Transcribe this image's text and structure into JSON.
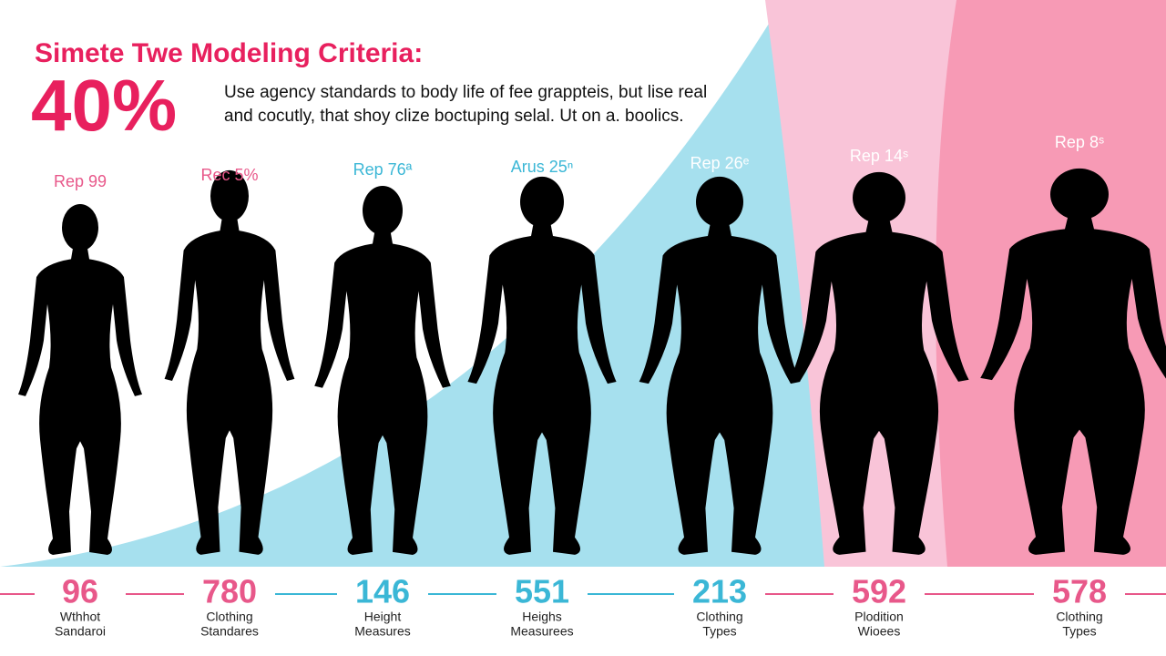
{
  "title": "Simete Twe Modeling Criteria:",
  "headline": "40%",
  "description": [
    "Use agency standards to body life of fee grappteis, but lise real",
    "and cocutly, that shoy clize boctuping selal. Ut on a. boolics."
  ],
  "figures": [
    {
      "label": "Rep 99",
      "number": 96,
      "caption": [
        "Wthhot",
        "Sandaroi"
      ]
    },
    {
      "label": "Rec 5%",
      "number": 780,
      "caption": [
        "Clothing",
        "Standares"
      ]
    },
    {
      "label": "Rep 76ª",
      "number": 146,
      "caption": [
        "Height",
        "Measures"
      ]
    },
    {
      "label": "Arus 25ⁿ",
      "number": 551,
      "caption": [
        "Heighs",
        "Measurees"
      ]
    },
    {
      "label": "Rep 26ᵉ",
      "number": 213,
      "caption": [
        "Clothing",
        "Types"
      ]
    },
    {
      "label": "Rep 14ˢ",
      "number": 592,
      "caption": [
        "Plodition",
        "Wioees"
      ]
    },
    {
      "label": "Rep 8ˢ",
      "number": 578,
      "caption": [
        "Clothing",
        "Types"
      ]
    }
  ]
}
